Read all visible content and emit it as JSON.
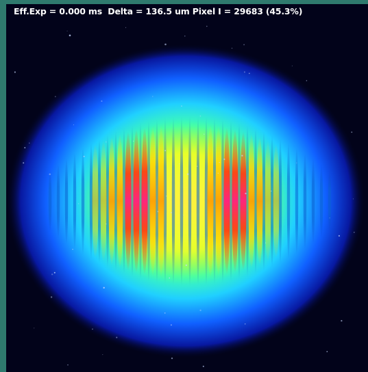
{
  "overlay": {
    "status_text": "Eff.Exp = 0.000 ms  Delta = 136.5 um Pixel I = 29683 (45.3%)"
  },
  "colors": {
    "frame": "#2f7a6e",
    "background": "#02031a",
    "overlay_text": "#ffffff"
  }
}
